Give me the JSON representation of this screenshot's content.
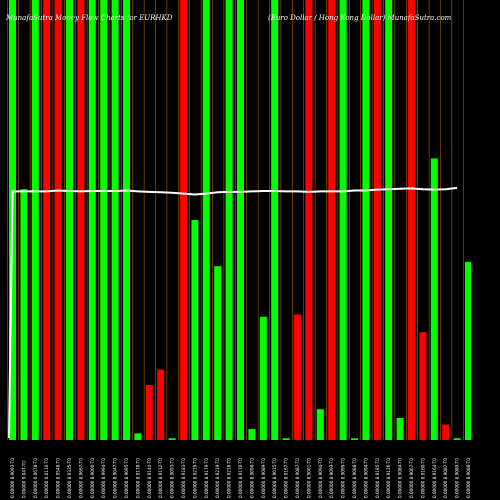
{
  "chart_data": {
    "type": "bar",
    "title_left": "MunafaSutra Money Flow Charts for EURHKD",
    "title_right": "(Euro Dollar / Hong Kong Dollar) MunafaSutra.com",
    "colors": {
      "background": "#000000",
      "up": "#00ff00",
      "down": "#ff0000",
      "ma_line": "#ffffff",
      "grid": "#c87800"
    },
    "ylim": [
      0,
      100
    ],
    "categories": [
      "",
      "",
      "",
      "",
      "",
      "",
      "",
      "",
      "",
      "",
      "",
      "",
      "",
      "",
      "",
      "",
      "",
      "",
      "",
      "",
      "",
      "",
      "",
      "",
      "",
      "",
      "",
      "",
      "",
      "",
      "",
      "",
      "",
      "",
      "",
      "",
      "",
      "",
      "",
      ""
    ],
    "series": [
      {
        "values": [
          100,
          57,
          100,
          100,
          100,
          100,
          100,
          100,
          100,
          100,
          100,
          1.5,
          12.5,
          16,
          0.4,
          100,
          50,
          100,
          39.5,
          100,
          100,
          2.5,
          28,
          100,
          0.4,
          28.5,
          100,
          7,
          100,
          100,
          0.4,
          100,
          100,
          100,
          5,
          100,
          24.5,
          64,
          3.5,
          0.4
        ],
        "directions": [
          "up",
          "up",
          "up",
          "down",
          "down",
          "up",
          "down",
          "up",
          "up",
          "up",
          "up",
          "up",
          "down",
          "down",
          "up",
          "down",
          "up",
          "up",
          "up",
          "up",
          "up",
          "up",
          "up",
          "up",
          "up",
          "down",
          "down",
          "up",
          "down",
          "up",
          "up",
          "up",
          "down",
          "up",
          "up",
          "down",
          "down",
          "up",
          "down",
          "up"
        ]
      }
    ],
    "extra_bar": {
      "value": 40.5,
      "direction": "up"
    },
    "moving_average": [
      56.5,
      56.5,
      56.5,
      56.5,
      56.7,
      56.6,
      56.5,
      56.6,
      56.6,
      56.6,
      56.7,
      56.5,
      56.4,
      56.3,
      56.2,
      56.0,
      55.8,
      56.0,
      56.3,
      56.4,
      56.4,
      56.5,
      56.6,
      56.6,
      56.5,
      56.5,
      56.4,
      56.5,
      56.5,
      56.5,
      56.7,
      56.7,
      56.9,
      57.0,
      57.1,
      57.2,
      57.0,
      56.9,
      57.0,
      57.3
    ],
    "tick_labels": [
      "0.00000 8.9093-TO",
      "0.00000 9.047-TO",
      "0.00000 0.0678-TO",
      "0.00000 0.0110-TO",
      "0.00000 8.9548-TO",
      "0.00000 8.9335-TO",
      "0.00000 8.9667-TO",
      "0.00000 8.9000-TO",
      "0.00000 8.9994-TO",
      "0.00000 8.9047-TO",
      "0.00000 8.9095-TO",
      "0.00000 8.9178-TO",
      "0.00000 8.9144-TO",
      "0.00000 8.9112-TO",
      "0.00000 8.9093-TO",
      "0.00000 8.9183-TO",
      "0.00000 8.9219-TO",
      "0.00000 8.9179-TO",
      "0.00000 8.9219-TO",
      "0.00000 8.9218-TO",
      "0.00000 8.9170-TO",
      "0.00000 8.9098-TO",
      "0.00000 8.9089-TO",
      "0.00000 8.9015-TO",
      "0.00000 8.9167-TO",
      "0.00000 8.9087-TO",
      "0.00000 8.9001-TO",
      "0.00000 8.9094-TO",
      "0.00000 8.9093-TO",
      "0.00000 8.9099-TO",
      "0.00000 8.9088-TO",
      "0.00000 8.9094-TO",
      "0.00000 8.9185-TO",
      "0.00000 8.9126-TO",
      "0.00000 8.9084-TO",
      "0.00000 8.9067-TO",
      "0.00000 8.9160-TO",
      "0.00000 8.9164-TO",
      "0.00000 8.9087-TO",
      "0.00000 8.9089-TO",
      "0.00000 8.9088-TO"
    ]
  }
}
